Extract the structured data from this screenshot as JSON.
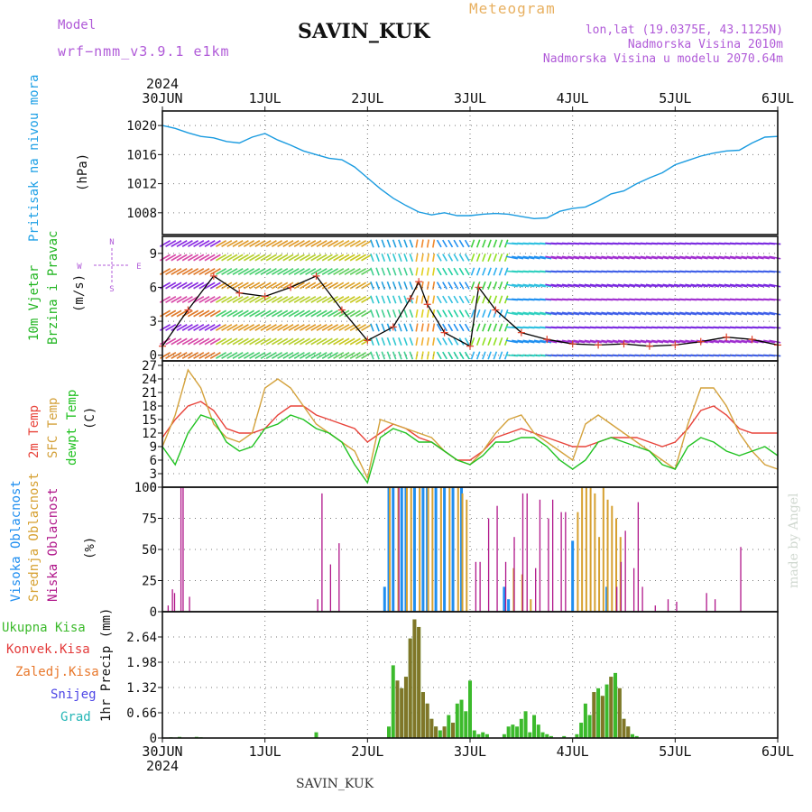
{
  "header": {
    "model_label": "Model",
    "model_value": "wrf−nmm_v3.9.1  e1km",
    "station": "SAVIN_KUK",
    "meteogram": "Meteogram",
    "lonlat": "lon,lat (19.0375E, 43.1125N)",
    "altitude": "Nadmorska Visina 2010m",
    "model_altitude": "Nadmorska Visina u modelu 2070.64m"
  },
  "footer": {
    "station": "SAVIN_KUK",
    "credit": "made by Angel"
  },
  "colors": {
    "pressure": "#1a9be0",
    "temp2m": "#e8433a",
    "sfc_temp": "#d4a23c",
    "dewpt": "#21c221",
    "high_cloud": "#1f8ef0",
    "mid_cloud": "#d6a030",
    "low_cloud": "#b0168a",
    "precip_total": "#3cba2c",
    "precip_conv": "#e33b3b",
    "frozen": "#e8782c",
    "snow": "#4e47e6",
    "hail": "#25b6b6",
    "wind_speed_line": "#e0402a",
    "wind_line2": "#000000"
  },
  "chart_data": [
    {
      "type": "line",
      "panel": "pressure",
      "title": "Pritisak na nivou mora",
      "ylabel": "(hPa)",
      "ylim": [
        1005,
        1022
      ],
      "yticks": [
        1008,
        1012,
        1016,
        1020
      ],
      "x_hours": [
        0,
        3,
        6,
        9,
        12,
        15,
        18,
        21,
        24,
        27,
        30,
        33,
        36,
        39,
        42,
        45,
        48,
        51,
        54,
        57,
        60,
        63,
        66,
        69,
        72,
        75,
        78,
        81,
        84,
        87,
        90,
        93,
        96,
        99,
        102,
        105,
        108,
        111,
        114,
        117,
        120,
        123,
        126,
        129,
        132,
        135,
        138,
        141,
        144
      ],
      "values": [
        1020,
        1019.6,
        1019,
        1018.5,
        1018.3,
        1017.8,
        1017.6,
        1018.4,
        1018.9,
        1018,
        1017.3,
        1016.5,
        1016,
        1015.5,
        1015.3,
        1014.3,
        1012.8,
        1011.3,
        1010,
        1009,
        1008.1,
        1007.7,
        1008,
        1007.6,
        1007.6,
        1007.8,
        1007.9,
        1007.8,
        1007.5,
        1007.2,
        1007.3,
        1008.2,
        1008.6,
        1008.8,
        1009.6,
        1010.6,
        1011,
        1012,
        1012.8,
        1013.5,
        1014.6,
        1015.2,
        1015.8,
        1016.2,
        1016.5,
        1016.6,
        1017.6,
        1018.4,
        1018.5
      ]
    },
    {
      "type": "line",
      "panel": "wind",
      "title": "10m Vjetar",
      "subtitle": "Brzina i Pravac",
      "ylabel": "(m/s)",
      "compass": [
        "N",
        "S",
        "W",
        "E"
      ],
      "ylim": [
        -0.5,
        10.5
      ],
      "yticks": [
        0,
        3,
        6,
        9
      ],
      "x_hours": [
        0,
        6,
        12,
        18,
        24,
        30,
        36,
        42,
        48,
        54,
        58,
        60,
        62,
        66,
        72,
        74,
        78,
        84,
        90,
        96,
        102,
        108,
        114,
        120,
        126,
        132,
        138,
        144
      ],
      "speed": [
        0.8,
        4,
        7,
        5.5,
        5.2,
        6,
        7,
        4,
        1.3,
        2.5,
        5,
        6.5,
        4.5,
        2,
        0.8,
        6,
        4,
        2,
        1.4,
        1,
        0.9,
        1,
        0.8,
        0.9,
        1.2,
        1.6,
        1.4,
        0.9
      ]
    },
    {
      "type": "line",
      "panel": "temperature",
      "ylabel": "(C)",
      "ylim": [
        0,
        28
      ],
      "yticks": [
        0,
        3,
        6,
        9,
        12,
        15,
        18,
        21,
        24,
        27
      ],
      "x_hours": [
        0,
        3,
        6,
        9,
        12,
        15,
        18,
        21,
        24,
        27,
        30,
        33,
        36,
        39,
        42,
        45,
        48,
        51,
        54,
        57,
        60,
        63,
        66,
        69,
        72,
        75,
        78,
        81,
        84,
        87,
        90,
        93,
        96,
        99,
        102,
        105,
        108,
        111,
        114,
        117,
        120,
        123,
        126,
        129,
        132,
        135,
        138,
        141,
        144
      ],
      "series": [
        {
          "name": "2m Temp",
          "color_key": "temp2m",
          "values": [
            11,
            15,
            18,
            19,
            17,
            13,
            12,
            12,
            13,
            16,
            18,
            18,
            16,
            15,
            14,
            13,
            10,
            12,
            14,
            13,
            11,
            10,
            8,
            6,
            6,
            8,
            11,
            12,
            13,
            12,
            11,
            10,
            9,
            9,
            10,
            11,
            11,
            11,
            10,
            9,
            10,
            13,
            17,
            18,
            16,
            13,
            12,
            12,
            12
          ]
        },
        {
          "name": "SFC Temp",
          "color_key": "sfc_temp",
          "values": [
            9,
            16,
            26,
            22,
            14,
            11,
            10,
            12,
            22,
            24,
            22,
            18,
            14,
            12,
            10,
            8,
            2,
            15,
            14,
            13,
            12,
            11,
            8,
            6,
            5,
            8,
            12,
            15,
            16,
            12,
            10,
            8,
            6,
            14,
            16,
            14,
            12,
            10,
            8,
            6,
            4,
            14,
            22,
            22,
            18,
            12,
            8,
            5,
            4
          ]
        },
        {
          "name": "dewpt Temp",
          "color_key": "dewpt",
          "values": [
            9,
            5,
            12,
            16,
            15,
            10,
            8,
            9,
            13,
            14,
            16,
            15,
            13,
            12,
            10,
            5,
            1,
            11,
            13,
            12,
            10,
            10,
            8,
            6,
            5,
            7,
            10,
            10,
            11,
            11,
            9,
            6,
            4,
            6,
            10,
            11,
            10,
            9,
            8,
            5,
            4,
            9,
            11,
            10,
            8,
            7,
            8,
            9,
            7
          ]
        }
      ]
    },
    {
      "type": "bar",
      "panel": "cloud",
      "ylabel": "(%)",
      "ylim": [
        0,
        100
      ],
      "yticks": [
        0,
        25,
        50,
        75,
        100
      ],
      "series_names": [
        "Visoka Oblacnost",
        "Srednja Oblacnost",
        "Niska Oblacnost"
      ],
      "high": [
        [
          52,
          20
        ],
        [
          53,
          100
        ],
        [
          54,
          100
        ],
        [
          56,
          100
        ],
        [
          57,
          100
        ],
        [
          59,
          100
        ],
        [
          61,
          100
        ],
        [
          62,
          100
        ],
        [
          64,
          100
        ],
        [
          66,
          100
        ],
        [
          68,
          100
        ],
        [
          70,
          100
        ],
        [
          80,
          20
        ],
        [
          81,
          10
        ],
        [
          96,
          57
        ],
        [
          104,
          20
        ]
      ],
      "mid": [
        [
          53,
          100
        ],
        [
          55,
          100
        ],
        [
          57,
          100
        ],
        [
          58,
          100
        ],
        [
          60,
          100
        ],
        [
          62,
          100
        ],
        [
          63,
          100
        ],
        [
          65,
          100
        ],
        [
          67,
          100
        ],
        [
          69,
          100
        ],
        [
          70,
          95
        ],
        [
          71,
          90
        ],
        [
          82,
          35
        ],
        [
          84,
          30
        ],
        [
          86,
          10
        ],
        [
          97,
          80
        ],
        [
          98,
          100
        ],
        [
          99,
          100
        ],
        [
          100,
          100
        ],
        [
          101,
          95
        ],
        [
          102,
          60
        ],
        [
          103,
          100
        ],
        [
          104,
          90
        ],
        [
          105,
          85
        ],
        [
          106,
          75
        ],
        [
          107,
          60
        ]
      ],
      "low": [
        [
          1,
          5
        ],
        [
          2,
          18
        ],
        [
          2.5,
          15
        ],
        [
          4,
          100
        ],
        [
          4.5,
          100
        ],
        [
          6,
          12
        ],
        [
          36,
          10
        ],
        [
          37,
          95
        ],
        [
          39,
          38
        ],
        [
          41,
          55
        ],
        [
          55,
          100
        ],
        [
          73,
          40
        ],
        [
          74,
          40
        ],
        [
          76,
          75
        ],
        [
          78,
          85
        ],
        [
          80,
          40
        ],
        [
          82,
          60
        ],
        [
          84,
          95
        ],
        [
          85,
          95
        ],
        [
          87,
          35
        ],
        [
          88,
          90
        ],
        [
          90,
          75
        ],
        [
          91,
          90
        ],
        [
          93,
          80
        ],
        [
          94,
          80
        ],
        [
          106,
          20
        ],
        [
          107,
          40
        ],
        [
          108,
          65
        ],
        [
          110,
          35
        ],
        [
          111,
          88
        ],
        [
          112,
          20
        ],
        [
          115,
          5
        ],
        [
          118,
          10
        ],
        [
          120,
          8
        ],
        [
          127,
          15
        ],
        [
          129,
          10
        ],
        [
          135,
          52
        ]
      ]
    },
    {
      "type": "bar",
      "panel": "precip",
      "ylabel": "1hr Precip (mm)",
      "ylim": [
        0,
        3.3
      ],
      "yticks": [
        0,
        0.66,
        1.32,
        1.98,
        2.64
      ],
      "legend": [
        "Ukupna Kisa",
        "Konvek.Kisa",
        "Zaledj.Kisa",
        "Snijeg",
        "Grad"
      ],
      "values": [
        [
          2,
          0.02
        ],
        [
          4,
          0.03
        ],
        [
          8,
          0.03
        ],
        [
          9,
          0.02
        ],
        [
          36,
          0.15
        ],
        [
          53,
          0.3
        ],
        [
          54,
          1.9
        ],
        [
          55,
          1.5
        ],
        [
          56,
          1.3
        ],
        [
          57,
          1.6
        ],
        [
          58,
          2.6
        ],
        [
          59,
          3.1
        ],
        [
          60,
          2.9
        ],
        [
          61,
          1.2
        ],
        [
          62,
          0.9
        ],
        [
          63,
          0.5
        ],
        [
          64,
          0.3
        ],
        [
          65,
          0.2
        ],
        [
          66,
          0.3
        ],
        [
          67,
          0.6
        ],
        [
          68,
          0.4
        ],
        [
          69,
          0.9
        ],
        [
          70,
          1.0
        ],
        [
          71,
          0.7
        ],
        [
          72,
          1.5
        ],
        [
          73,
          0.2
        ],
        [
          74,
          0.1
        ],
        [
          75,
          0.15
        ],
        [
          76,
          0.1
        ],
        [
          80,
          0.1
        ],
        [
          81,
          0.3
        ],
        [
          82,
          0.35
        ],
        [
          83,
          0.3
        ],
        [
          84,
          0.5
        ],
        [
          85,
          0.7
        ],
        [
          86,
          0.15
        ],
        [
          87,
          0.6
        ],
        [
          88,
          0.35
        ],
        [
          89,
          0.15
        ],
        [
          90,
          0.1
        ],
        [
          91,
          0.05
        ],
        [
          94,
          0.05
        ],
        [
          97,
          0.1
        ],
        [
          98,
          0.4
        ],
        [
          99,
          0.9
        ],
        [
          100,
          0.6
        ],
        [
          101,
          1.2
        ],
        [
          102,
          1.3
        ],
        [
          103,
          1.1
        ],
        [
          104,
          1.4
        ],
        [
          105,
          1.6
        ],
        [
          106,
          1.7
        ],
        [
          107,
          1.3
        ],
        [
          108,
          0.5
        ],
        [
          109,
          0.3
        ],
        [
          110,
          0.1
        ],
        [
          111,
          0.05
        ]
      ],
      "conv_hours": [
        55,
        56,
        57,
        58,
        59,
        60,
        61,
        62,
        63,
        64,
        66,
        68,
        101,
        103,
        105,
        107,
        108,
        109
      ]
    }
  ],
  "time_axis": {
    "year": "2024",
    "labels": [
      "30JUN",
      "1JUL",
      "2JUL",
      "3JUL",
      "4JUL",
      "5JUL",
      "6JUL"
    ],
    "hours_span": 144
  }
}
